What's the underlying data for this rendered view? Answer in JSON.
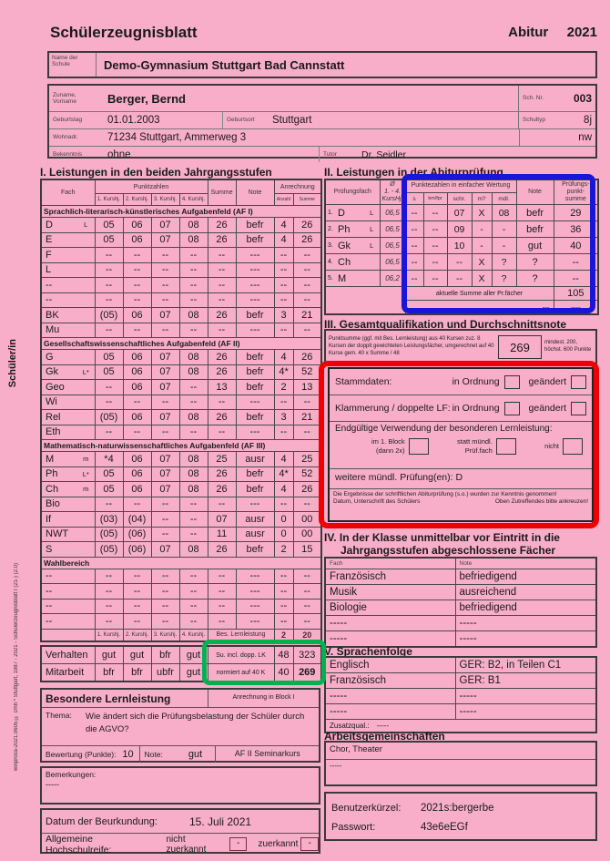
{
  "page": {
    "title": "Schülerzeugnisblatt",
    "exam_label": "Abitur",
    "exam_year": "2021"
  },
  "colors": {
    "paper": "#f8aec8",
    "blue_box": "#1a16d8",
    "red_box": "#ee0000",
    "green_box": "#00b14f"
  },
  "school": {
    "label": "Name der Schule",
    "value": "Demo-Gymnasium Stuttgart Bad Cannstatt"
  },
  "student": {
    "name_label": "Zuname, Vorname",
    "name": "Berger, Bernd",
    "schnr_label": "Sch. Nr.",
    "schnr": "003",
    "geburtstag_label": "Geburtstag",
    "geburtstag": "01.01.2003",
    "geburtsort_label": "Geburtsort",
    "geburtsort": "Stuttgart",
    "schultyp_label": "Schultyp",
    "schultyp": "8j",
    "wohnadr_label": "Wohnadr.",
    "wohnadr": "71234 Stuttgart, Ammerweg 3",
    "profil": "nw",
    "bekenntnis_label": "Bekenntnis",
    "bekenntnis": "ohne",
    "tutor_label": "Tutor",
    "tutor": "Dr. Seidler"
  },
  "sidebar": {
    "role": "Schüler/in",
    "imprint": "winprosa-2021.0605 © cmh * Stuttgart, 1987 - 2021 - Schülerzeugnisblatt I (21-) (2.0)"
  },
  "table1": {
    "title": "I. Leistungen in den beiden Jahrgangsstufen",
    "headers": {
      "fach": "Fach",
      "punkte": "Punktzahlen",
      "kurshj": [
        "1. Kurshj.",
        "2. Kurshj.",
        "3. Kurshj.",
        "4. Kurshj."
      ],
      "summe": "Summe",
      "note": "Note",
      "anrechnung": "Anrechnung",
      "anzahl": "Anzahl",
      "asumme": "Summe"
    },
    "groups": [
      {
        "title": "Sprachlich-literarisch-künstlerisches Aufgabenfeld (AF I)",
        "rows": [
          [
            "D",
            "L",
            "05",
            "06",
            "07",
            "08",
            "26",
            "befr",
            "4",
            "26"
          ],
          [
            "E",
            "",
            "05",
            "06",
            "07",
            "08",
            "26",
            "befr",
            "4",
            "26"
          ],
          [
            "F",
            "",
            "--",
            "--",
            "--",
            "--",
            "--",
            "---",
            "--",
            "--"
          ],
          [
            "L",
            "",
            "--",
            "--",
            "--",
            "--",
            "--",
            "---",
            "--",
            "--"
          ],
          [
            "--",
            "",
            "--",
            "--",
            "--",
            "--",
            "--",
            "---",
            "--",
            "--"
          ],
          [
            "--",
            "",
            "--",
            "--",
            "--",
            "--",
            "--",
            "---",
            "--",
            "--"
          ],
          [
            "BK",
            "",
            "(05)",
            "06",
            "07",
            "08",
            "26",
            "befr",
            "3",
            "21"
          ],
          [
            "Mu",
            "",
            "--",
            "--",
            "--",
            "--",
            "--",
            "---",
            "--",
            "--"
          ]
        ]
      },
      {
        "title": "Gesellschaftswissenschaftliches Aufgabenfeld (AF II)",
        "rows": [
          [
            "G",
            "",
            "05",
            "06",
            "07",
            "08",
            "26",
            "befr",
            "4",
            "26"
          ],
          [
            "Gk",
            "L*",
            "05",
            "06",
            "07",
            "08",
            "26",
            "befr",
            "4*",
            "52"
          ],
          [
            "Geo",
            "",
            "--",
            "06",
            "07",
            "--",
            "13",
            "befr",
            "2",
            "13"
          ],
          [
            "Wi",
            "",
            "--",
            "--",
            "--",
            "--",
            "--",
            "---",
            "--",
            "--"
          ],
          [
            "Rel",
            "",
            "(05)",
            "06",
            "07",
            "08",
            "26",
            "befr",
            "3",
            "21"
          ],
          [
            "Eth",
            "",
            "--",
            "--",
            "--",
            "--",
            "--",
            "---",
            "--",
            "--"
          ]
        ]
      },
      {
        "title": "Mathematisch-naturwissenschaftliches Aufgabenfeld (AF III)",
        "rows": [
          [
            "M",
            "m",
            "*4",
            "06",
            "07",
            "08",
            "25",
            "ausr",
            "4",
            "25"
          ],
          [
            "Ph",
            "L*",
            "05",
            "06",
            "07",
            "08",
            "26",
            "befr",
            "4*",
            "52"
          ],
          [
            "Ch",
            "m",
            "05",
            "06",
            "07",
            "08",
            "26",
            "befr",
            "4",
            "26"
          ],
          [
            "Bio",
            "",
            "--",
            "--",
            "--",
            "--",
            "--",
            "---",
            "--",
            "--"
          ],
          [
            "If",
            "",
            "(03)",
            "(04)",
            "--",
            "--",
            "07",
            "ausr",
            "0",
            "00"
          ],
          [
            "NWT",
            "",
            "(05)",
            "(06)",
            "--",
            "--",
            "11",
            "ausr",
            "0",
            "00"
          ],
          [
            "S",
            "",
            "(05)",
            "(06)",
            "07",
            "08",
            "26",
            "befr",
            "2",
            "15"
          ]
        ]
      },
      {
        "title": "Wahlbereich",
        "rows": [
          [
            "--",
            "",
            "--",
            "--",
            "--",
            "--",
            "--",
            "---",
            "--",
            "--"
          ],
          [
            "--",
            "",
            "--",
            "--",
            "--",
            "--",
            "--",
            "---",
            "--",
            "--"
          ],
          [
            "--",
            "",
            "--",
            "--",
            "--",
            "--",
            "--",
            "---",
            "--",
            "--"
          ],
          [
            "--",
            "",
            "--",
            "--",
            "--",
            "--",
            "--",
            "---",
            "--",
            "--"
          ]
        ]
      }
    ],
    "repeat_labels": [
      "1. Kurshj.",
      "2. Kurshj.",
      "3. Kurshj.",
      "4. Kurshj."
    ],
    "bll": {
      "label": "Bes. Lernleistung",
      "anzahl": "2",
      "summe": "20"
    },
    "verhalten": {
      "label": "Verhalten",
      "v": [
        "gut",
        "gut",
        "bfr",
        "gut"
      ],
      "su": "Su. incl. dopp. LK",
      "anz": "48",
      "sum": "323"
    },
    "mitarbeit": {
      "label": "Mitarbeit",
      "v": [
        "bfr",
        "bfr",
        "ubfr",
        "gut"
      ],
      "su": "normiert auf 40 K",
      "anz": "40",
      "sum": "269"
    }
  },
  "bll_box": {
    "title": "Besondere Lernleistung",
    "anrechnung": "Anrechnung in Block I",
    "thema_label": "Thema:",
    "thema": "Wie ändert sich die Prüfungsbelastung der Schüler durch die AGVO?",
    "bewertung_label": "Bewertung (Punkte):",
    "bewertung": "10",
    "note_label": "Note:",
    "note": "gut",
    "kurs": "AF II Seminarkurs"
  },
  "bemerkungen": {
    "label": "Bemerkungen:",
    "value": "-----"
  },
  "beurkundung": {
    "datum_label": "Datum der Beurkundung:",
    "datum": "15. Juli 2021",
    "hsr_label": "Allgemeine Hochschulreife:",
    "nicht": "nicht zuerkannt",
    "nicht_val": "-",
    "zuerkannt": "zuerkannt",
    "zuerkannt_val": "-"
  },
  "table2": {
    "title": "II. Leistungen in der Abiturprüfung",
    "headers": {
      "fach": "Prüfungsfach",
      "avg": [
        "Ø",
        "1. - 4.",
        "KursHj."
      ],
      "punkte": "Punktezahlen in einfacher Wertung",
      "sub": [
        "s",
        "km/fpr",
        "schr.",
        "m?",
        "mdl."
      ],
      "note": "Note",
      "summe": [
        "Prüfungs-",
        "punkt-",
        "summe"
      ]
    },
    "rows": [
      [
        "1.",
        "D",
        "L",
        "06,5",
        "--",
        "--",
        "07",
        "X",
        "08",
        "befr",
        "29"
      ],
      [
        "2.",
        "Ph",
        "L",
        "06,5",
        "--",
        "--",
        "09",
        "-",
        "-",
        "befr",
        "36"
      ],
      [
        "3.",
        "Gk",
        "L",
        "06,5",
        "--",
        "--",
        "10",
        "-",
        "-",
        "gut",
        "40"
      ],
      [
        "4.",
        "Ch",
        "",
        "06,5",
        "--",
        "--",
        "--",
        "X",
        "?",
        "?",
        "--"
      ],
      [
        "5.",
        "M",
        "",
        "06,2",
        "--",
        "--",
        "--",
        "X",
        "?",
        "?",
        "--"
      ]
    ],
    "footer": {
      "label": "aktuelle Summe aller Pr.fächer",
      "value": "105",
      "dash_left": "---",
      "dash_right": "----"
    }
  },
  "section3": {
    "title": "III. Gesamtqualifikation und Durchschnittsnote",
    "text": "Punktsumme (ggf. mit Bes. Lernleistung) aus 40 Kursen zuz. 8 Kursen der dopplt gewichteten Leistungsfächer, umgerechnet auf 40 Kurse gem. 40 x Summe / 48",
    "value": "269",
    "range": "mindest. 200, höchst. 600 Punkte"
  },
  "checkblock": {
    "stammdaten_label": "Stammdaten:",
    "klammerung_label": "Klammerung / doppelte LF:",
    "in_ordnung": "in Ordnung",
    "geaendert": "geändert",
    "verwendung_label": "Endgültige Verwendung der besonderen Lernleistung:",
    "block1": [
      "im 1. Block",
      "(dann 2x)"
    ],
    "statt": [
      "statt mündl.",
      "Prüf.fach"
    ],
    "nicht": "nicht",
    "weitere": "weitere mündl. Prüfung(en): D",
    "kenntnis": "Die Ergebnisse der schriftlichen Abiturprüfung (s.o.) wurden zur Kenntnis genommen!",
    "unterschrift": "Datum, Unterschrift des Schülers",
    "ankreuzen": "Oben Zutreffendes bitte ankreuzen!"
  },
  "section4": {
    "title_lines": [
      "IV. In der Klasse unmittelbar vor Eintritt in die",
      "Jahrgangsstufen abgeschlossene Fächer"
    ],
    "headers": [
      "Fach",
      "Note"
    ],
    "rows": [
      [
        "Französisch",
        "befriedigend"
      ],
      [
        "Musik",
        "ausreichend"
      ],
      [
        "Biologie",
        "befriedigend"
      ],
      [
        "-----",
        "-----"
      ],
      [
        "-----",
        "-----"
      ]
    ]
  },
  "section5": {
    "title": "V. Sprachenfolge",
    "rows": [
      [
        "Englisch",
        "GER: B2, in Teilen C1"
      ],
      [
        "Französisch",
        "GER: B1"
      ],
      [
        "-----",
        "-----"
      ],
      [
        "-----",
        "-----"
      ]
    ],
    "zusatz_label": "Zusatzqual.:",
    "zusatz_value": "-----"
  },
  "ag": {
    "title": "Arbeitsgemeinschaften",
    "rows": [
      "Chor, Theater",
      "-----"
    ]
  },
  "credentials": {
    "user_label": "Benutzerkürzel:",
    "user": "2021s:bergerbe",
    "pass_label": "Passwort:",
    "pass": "43e6eEGf"
  }
}
